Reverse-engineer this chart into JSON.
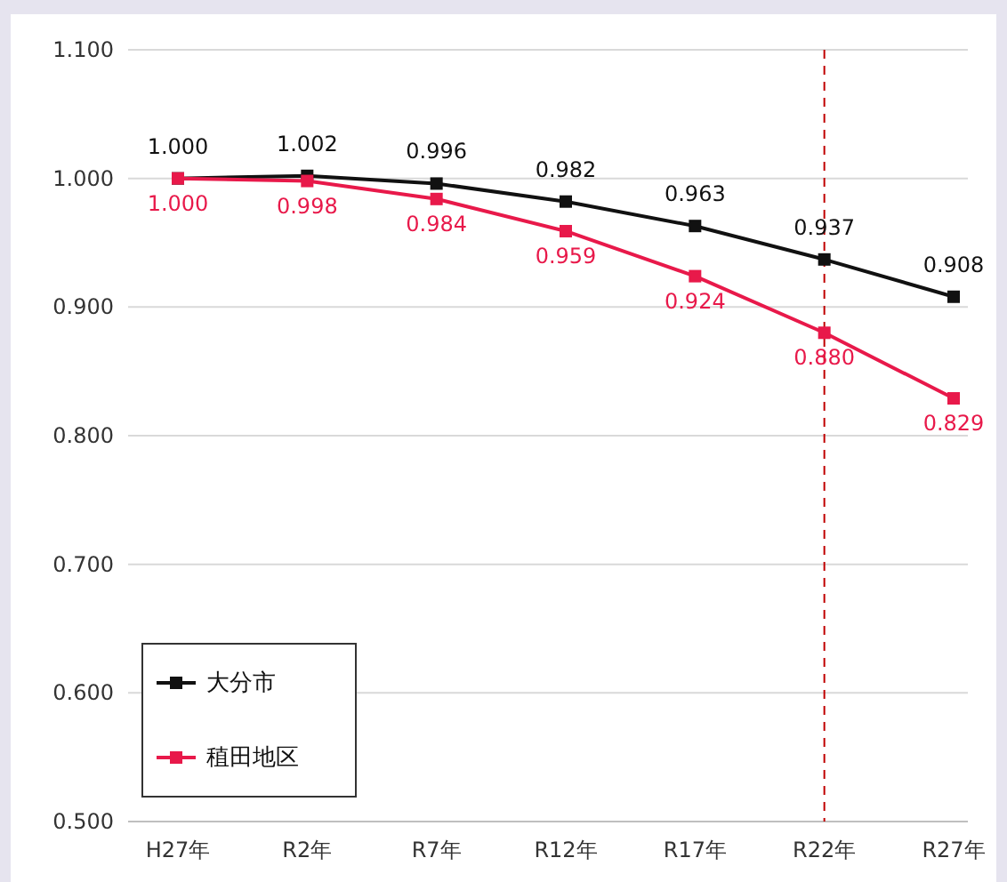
{
  "chart_data": {
    "type": "line",
    "categories": [
      "H27年",
      "R2年",
      "R7年",
      "R12年",
      "R17年",
      "R22年",
      "R27年"
    ],
    "series": [
      {
        "name": "大分市",
        "color": "#111111",
        "values": [
          1.0,
          1.002,
          0.996,
          0.982,
          0.963,
          0.937,
          0.908
        ],
        "value_labels": [
          "1.000",
          "1.002",
          "0.996",
          "0.982",
          "0.963",
          "0.937",
          "0.908"
        ]
      },
      {
        "name": "稙田地区",
        "color": "#e8194a",
        "values": [
          1.0,
          0.998,
          0.984,
          0.959,
          0.924,
          0.88,
          0.829
        ],
        "value_labels": [
          "1.000",
          "0.998",
          "0.984",
          "0.959",
          "0.924",
          "0.880",
          "0.829"
        ]
      }
    ],
    "ylim": [
      0.5,
      1.1
    ],
    "yticks": [
      {
        "value": 0.5,
        "label": "0.500"
      },
      {
        "value": 0.6,
        "label": "0.600"
      },
      {
        "value": 0.7,
        "label": "0.700"
      },
      {
        "value": 0.8,
        "label": "0.800"
      },
      {
        "value": 0.9,
        "label": "0.900"
      },
      {
        "value": 1.0,
        "label": "1.000"
      },
      {
        "value": 1.1,
        "label": "1.100"
      }
    ],
    "grid": "y",
    "marker": "square",
    "line_style": "solid",
    "legend": "bottom left",
    "ref_lines": [
      {
        "axis": "x",
        "value": "R22年",
        "color": "#c00000",
        "line_style": "dashed"
      }
    ]
  }
}
